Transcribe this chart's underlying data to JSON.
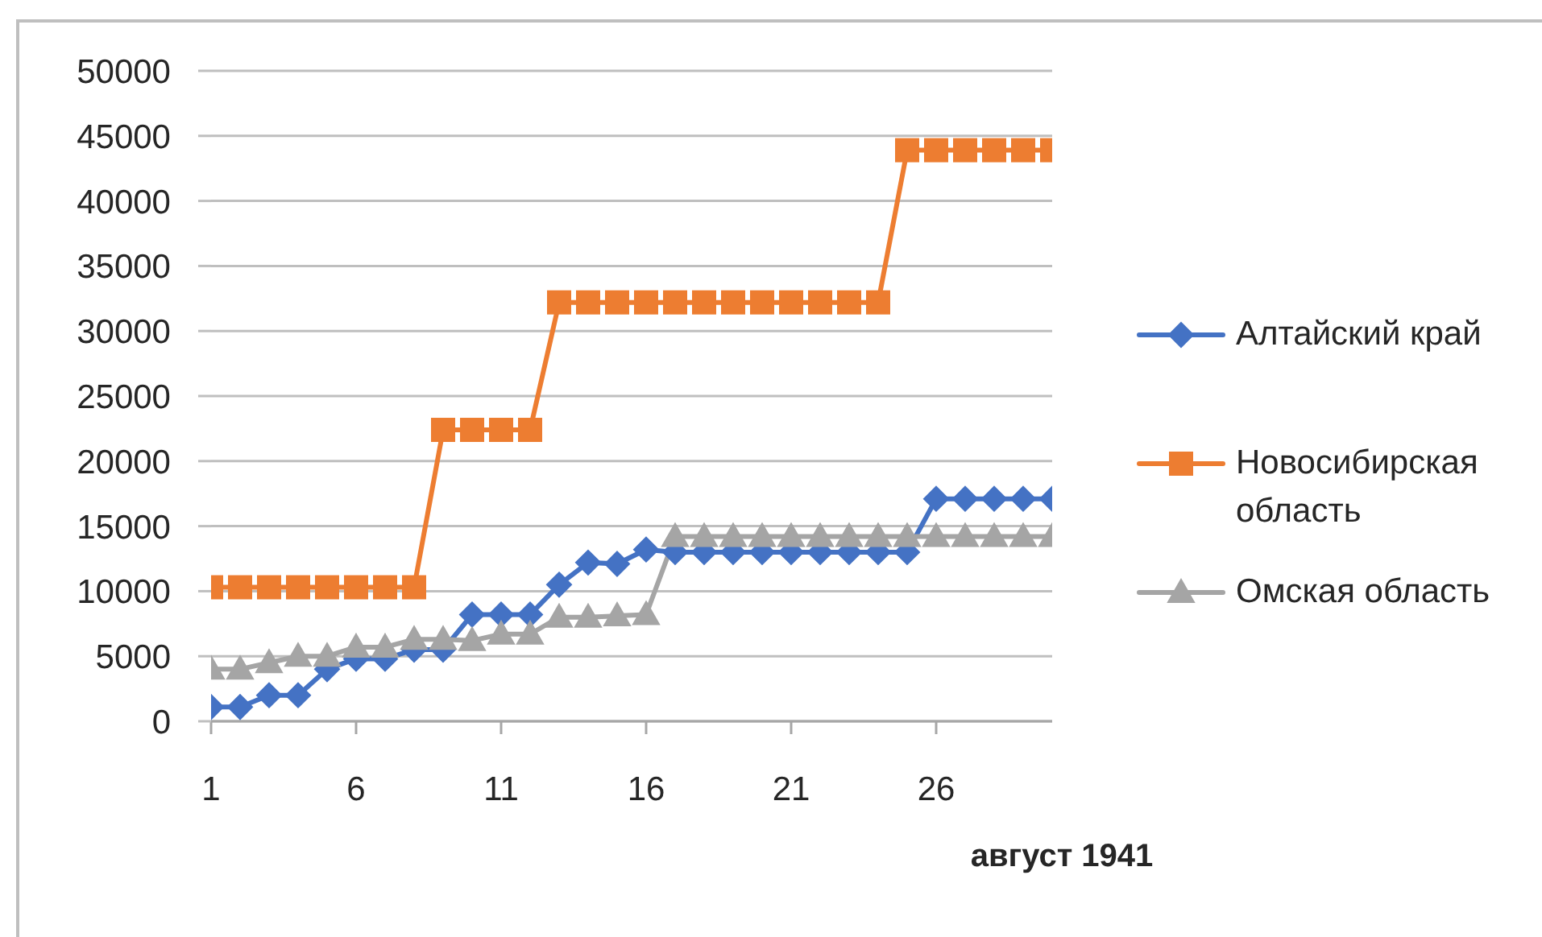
{
  "chart_data": {
    "type": "line",
    "xlabel": "август 1941",
    "x": [
      1,
      2,
      3,
      4,
      5,
      6,
      7,
      8,
      9,
      10,
      11,
      12,
      13,
      14,
      15,
      16,
      17,
      18,
      19,
      20,
      21,
      22,
      23,
      24,
      25,
      26,
      27,
      28,
      29,
      30
    ],
    "series": [
      {
        "name": "Алтайский край",
        "color": "#4472c4",
        "marker": "diamond",
        "values": [
          1100,
          1100,
          2000,
          2000,
          4000,
          4800,
          4800,
          5500,
          5500,
          8200,
          8200,
          8200,
          10500,
          12200,
          12100,
          13200,
          13000,
          13000,
          13000,
          13000,
          13000,
          13000,
          13000,
          13000,
          13000,
          17100,
          17100,
          17100,
          17100,
          17100
        ]
      },
      {
        "name": "Новосибирская область",
        "color": "#ed7d31",
        "marker": "square",
        "values": [
          10300,
          10300,
          10300,
          10300,
          10300,
          10300,
          10300,
          10300,
          22400,
          22400,
          22400,
          22400,
          32200,
          32200,
          32200,
          32200,
          32200,
          32200,
          32200,
          32200,
          32200,
          32200,
          32200,
          32200,
          43900,
          43900,
          43900,
          43900,
          43900,
          43900
        ]
      },
      {
        "name": "Омская область",
        "color": "#a5a5a5",
        "marker": "triangle",
        "values": [
          4000,
          4000,
          4500,
          5000,
          5000,
          5700,
          5700,
          6300,
          6300,
          6200,
          6700,
          6700,
          8000,
          8000,
          8100,
          8200,
          14200,
          14200,
          14200,
          14200,
          14200,
          14200,
          14200,
          14200,
          14200,
          14200,
          14200,
          14200,
          14200,
          14200
        ]
      }
    ],
    "xlim": [
      1,
      30
    ],
    "xticks": [
      1,
      6,
      11,
      16,
      21,
      26
    ],
    "ylim": [
      0,
      50000
    ],
    "yticks": [
      0,
      5000,
      10000,
      15000,
      20000,
      25000,
      30000,
      35000,
      40000,
      45000,
      50000
    ],
    "grid": "y",
    "legend": "right",
    "line_style": "solid"
  }
}
